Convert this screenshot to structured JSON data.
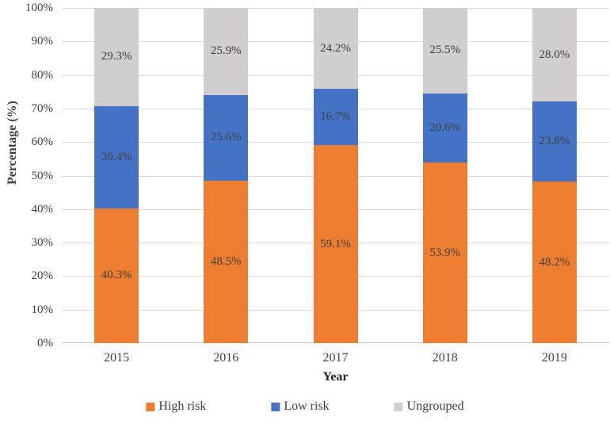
{
  "chart_data": {
    "type": "bar",
    "stacked": true,
    "percent_stack": true,
    "title": "",
    "xlabel": "Year",
    "ylabel": "Percentage (%)",
    "ylim": [
      0,
      100
    ],
    "grid": true,
    "legend_position": "bottom",
    "categories": [
      "2015",
      "2016",
      "2017",
      "2018",
      "2019"
    ],
    "yticks": [
      "0%",
      "10%",
      "20%",
      "30%",
      "40%",
      "50%",
      "60%",
      "70%",
      "80%",
      "90%",
      "100%"
    ],
    "ytick_values": [
      0,
      10,
      20,
      30,
      40,
      50,
      60,
      70,
      80,
      90,
      100
    ],
    "series": [
      {
        "name": "High risk",
        "color": "#ED7D31",
        "values": [
          40.3,
          48.5,
          59.1,
          53.9,
          48.2
        ],
        "labels": [
          "40.3%",
          "48.5%",
          "59.1%",
          "53.9%",
          "48.2%"
        ]
      },
      {
        "name": "Low risk",
        "color": "#4472C4",
        "values": [
          30.4,
          25.6,
          16.7,
          20.6,
          23.8
        ],
        "labels": [
          "30.4%",
          "25.6%",
          "16.7%",
          "20.6%",
          "23.8%"
        ]
      },
      {
        "name": "Ungrouped",
        "color": "#D0CECE",
        "values": [
          29.3,
          25.9,
          24.2,
          25.5,
          28.0
        ],
        "labels": [
          "29.3%",
          "25.9%",
          "24.2%",
          "25.5%",
          "28.0%"
        ]
      }
    ]
  },
  "styles": {
    "gridline_color": "#D9D9D9",
    "axis_line_color": "#BFBFBF",
    "text_color": "#404040",
    "background": "#FFFFFF"
  }
}
